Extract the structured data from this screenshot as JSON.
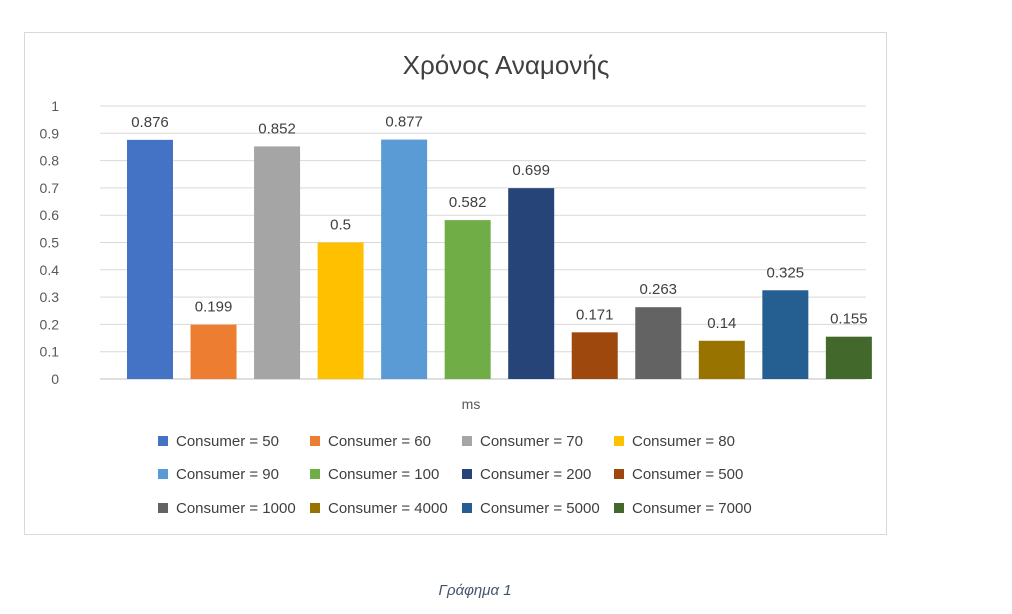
{
  "chart_data": {
    "type": "bar",
    "title": "Χρόνος Αναμονής",
    "xlabel": "ms",
    "ylabel": "",
    "ylim": [
      0,
      1
    ],
    "yticks": [
      "0",
      "0.1",
      "0.2",
      "0.3",
      "0.4",
      "0.5",
      "0.6",
      "0.7",
      "0.8",
      "0.9",
      "1"
    ],
    "grid": true,
    "legend_position": "bottom",
    "series": [
      {
        "name": "Consumer = 50",
        "value": 0.876,
        "label": "0.876",
        "color": "#4472c4"
      },
      {
        "name": "Consumer = 60",
        "value": 0.199,
        "label": "0.199",
        "color": "#ed7d31"
      },
      {
        "name": "Consumer = 70",
        "value": 0.852,
        "label": "0.852",
        "color": "#a5a5a5"
      },
      {
        "name": "Consumer = 80",
        "value": 0.5,
        "label": "0.5",
        "color": "#ffc000"
      },
      {
        "name": "Consumer = 90",
        "value": 0.877,
        "label": "0.877",
        "color": "#5b9bd5"
      },
      {
        "name": "Consumer = 100",
        "value": 0.582,
        "label": "0.582",
        "color": "#70ad47"
      },
      {
        "name": "Consumer = 200",
        "value": 0.699,
        "label": "0.699",
        "color": "#264478"
      },
      {
        "name": "Consumer = 500",
        "value": 0.171,
        "label": "0.171",
        "color": "#9e480e"
      },
      {
        "name": "Consumer = 1000",
        "value": 0.263,
        "label": "0.263",
        "color": "#636363"
      },
      {
        "name": "Consumer = 4000",
        "value": 0.14,
        "label": "0.14",
        "color": "#997300"
      },
      {
        "name": "Consumer = 5000",
        "value": 0.325,
        "label": "0.325",
        "color": "#255e91"
      },
      {
        "name": "Consumer = 7000",
        "value": 0.155,
        "label": "0.155",
        "color": "#43682b"
      }
    ]
  },
  "caption": "Γράφημα 1"
}
